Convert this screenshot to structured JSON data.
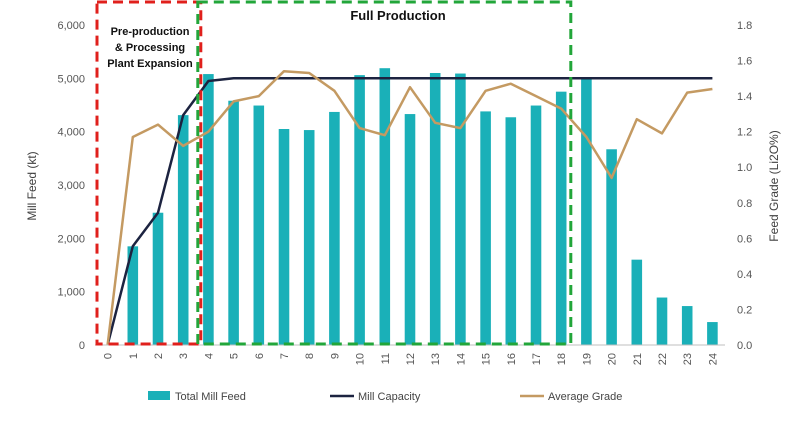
{
  "chart_data": {
    "type": "bar",
    "title": "",
    "xlabel": "",
    "ylabel": "Mill Feed (kt)",
    "ylabel_right": "Feed Grade (Li2O%)",
    "categories": [
      "0",
      "1",
      "2",
      "3",
      "4",
      "5",
      "6",
      "7",
      "8",
      "9",
      "10",
      "11",
      "12",
      "13",
      "14",
      "15",
      "16",
      "17",
      "18",
      "19",
      "20",
      "21",
      "22",
      "23",
      "24"
    ],
    "ylim": [
      0,
      6000
    ],
    "yticks": [
      "0",
      "1,000",
      "2,000",
      "3,000",
      "4,000",
      "5,000",
      "6,000"
    ],
    "ytick_values": [
      0,
      1000,
      2000,
      3000,
      4000,
      5000,
      6000
    ],
    "ylim_right": [
      0,
      1.8
    ],
    "yticks_right": [
      "0.0",
      "0.2",
      "0.4",
      "0.6",
      "0.8",
      "1.0",
      "1.2",
      "1.4",
      "1.6",
      "1.8"
    ],
    "ytick_values_right": [
      0,
      0.2,
      0.4,
      0.6,
      0.8,
      1.0,
      1.2,
      1.4,
      1.6,
      1.8
    ],
    "series": [
      {
        "name": "Total Mill Feed",
        "type": "bar",
        "axis": "left",
        "color": "#1ab0b8",
        "values": [
          0,
          1850,
          2480,
          4310,
          5080,
          4580,
          4490,
          4050,
          4030,
          4370,
          5060,
          5190,
          4330,
          5100,
          5090,
          4380,
          4270,
          4490,
          4750,
          5000,
          3670,
          1600,
          890,
          730,
          430
        ]
      },
      {
        "name": "Mill Capacity",
        "type": "line",
        "axis": "left",
        "color": "#1c2340",
        "values": [
          0,
          1850,
          2480,
          4310,
          4950,
          5000,
          5000,
          5000,
          5000,
          5000,
          5000,
          5000,
          5000,
          5000,
          5000,
          5000,
          5000,
          5000,
          5000,
          5000,
          5000,
          5000,
          5000,
          5000,
          5000
        ]
      },
      {
        "name": "Average Grade",
        "type": "line",
        "axis": "right",
        "color": "#c49a62",
        "values": [
          0,
          1.17,
          1.24,
          1.12,
          1.2,
          1.37,
          1.4,
          1.54,
          1.53,
          1.43,
          1.22,
          1.18,
          1.45,
          1.25,
          1.22,
          1.43,
          1.47,
          1.4,
          1.33,
          1.17,
          0.94,
          1.27,
          1.19,
          1.42,
          1.44
        ]
      }
    ],
    "annotations": {
      "preproduction": {
        "lines": [
          "Pre-production",
          "& Processing",
          "Plant Expansion"
        ],
        "from": 0,
        "to": 3,
        "color": "#e0201c"
      },
      "full_production": {
        "label": "Full Production",
        "from": 4,
        "to": 18,
        "color": "#22a63a"
      }
    },
    "legend": {
      "position": "bottom",
      "items": [
        "Total Mill Feed",
        "Mill Capacity",
        "Average Grade"
      ]
    }
  }
}
